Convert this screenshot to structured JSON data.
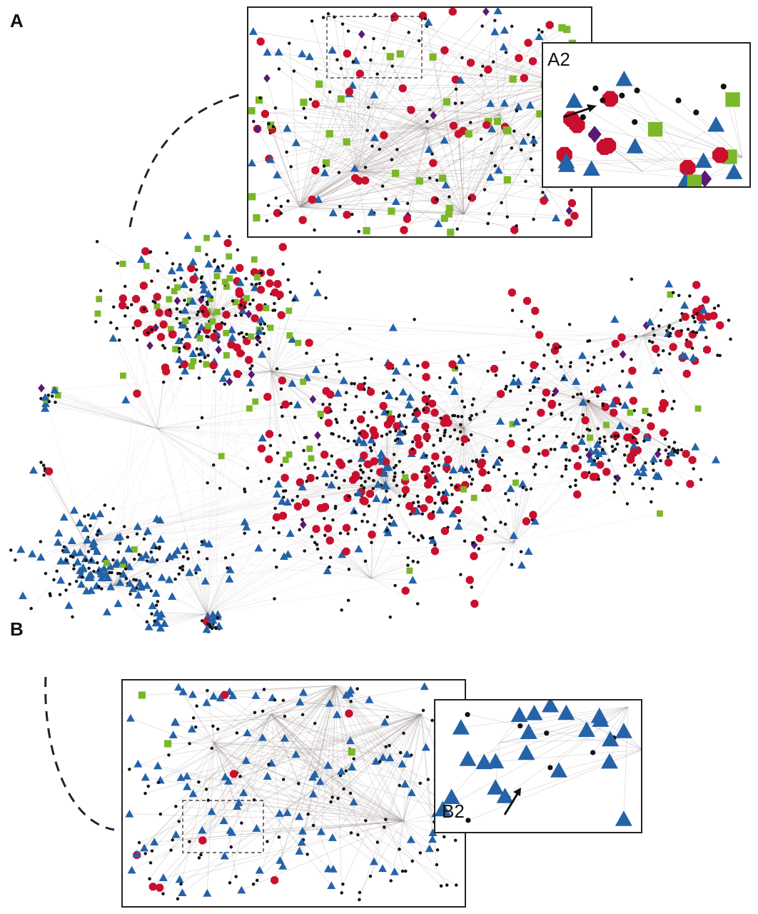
{
  "figure": {
    "panel_a_letter": "A",
    "panel_b_letter": "B",
    "inset_a2_label": "A2",
    "inset_b2_label": "B2"
  },
  "legend_shapes": {
    "circle": {
      "color": "#c8102e",
      "shape": "octagon"
    },
    "triangle": {
      "color": "#2463a8",
      "shape": "triangle"
    },
    "square": {
      "color": "#7ab829",
      "shape": "square"
    },
    "diamond": {
      "color": "#5a1a74",
      "shape": "diamond"
    },
    "node": {
      "color": "#111111",
      "shape": "small-dot"
    }
  },
  "colors": {
    "edge": "#9a8c8c",
    "frame": "#222222"
  }
}
